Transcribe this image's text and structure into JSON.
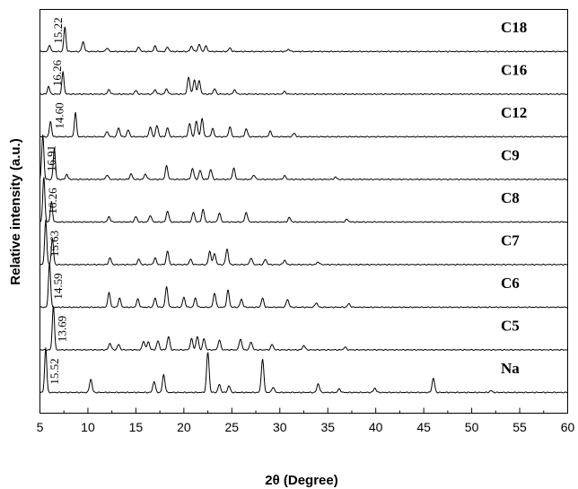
{
  "chart_data": {
    "type": "line",
    "title": "",
    "xlabel": "2θ (Degree)",
    "ylabel": "Relative intensity (a.u.)",
    "xlim": [
      5,
      60
    ],
    "xticks": [
      5,
      10,
      15,
      20,
      25,
      30,
      35,
      40,
      45,
      50,
      55,
      60
    ],
    "grid": false,
    "series": [
      {
        "name": "C18",
        "first_peak_label": "15.22",
        "peaks": [
          [
            6.0,
            0.15
          ],
          [
            7.6,
            0.55
          ],
          [
            9.5,
            0.22
          ],
          [
            12.0,
            0.08
          ],
          [
            15.3,
            0.1
          ],
          [
            17.0,
            0.12
          ],
          [
            18.3,
            0.1
          ],
          [
            20.8,
            0.12
          ],
          [
            21.6,
            0.16
          ],
          [
            22.3,
            0.12
          ],
          [
            24.8,
            0.08
          ],
          [
            30.9,
            0.05
          ]
        ]
      },
      {
        "name": "C16",
        "first_peak_label": "16.26",
        "peaks": [
          [
            5.9,
            0.18
          ],
          [
            7.4,
            0.5
          ],
          [
            12.2,
            0.1
          ],
          [
            15.0,
            0.08
          ],
          [
            17.0,
            0.1
          ],
          [
            18.2,
            0.12
          ],
          [
            20.5,
            0.38
          ],
          [
            21.1,
            0.32
          ],
          [
            21.6,
            0.3
          ],
          [
            23.2,
            0.12
          ],
          [
            25.3,
            0.1
          ],
          [
            30.5,
            0.06
          ]
        ]
      },
      {
        "name": "C12",
        "first_peak_label": "14.60",
        "peaks": [
          [
            6.1,
            0.35
          ],
          [
            8.7,
            0.55
          ],
          [
            12.0,
            0.12
          ],
          [
            13.2,
            0.2
          ],
          [
            14.2,
            0.15
          ],
          [
            16.5,
            0.22
          ],
          [
            17.2,
            0.25
          ],
          [
            18.3,
            0.2
          ],
          [
            20.6,
            0.3
          ],
          [
            21.3,
            0.35
          ],
          [
            21.9,
            0.4
          ],
          [
            23.0,
            0.18
          ],
          [
            24.8,
            0.22
          ],
          [
            26.5,
            0.18
          ],
          [
            29.0,
            0.12
          ],
          [
            31.5,
            0.08
          ]
        ]
      },
      {
        "name": "C9",
        "first_peak_label": "16.91",
        "peaks": [
          [
            5.3,
            1.0
          ],
          [
            6.5,
            0.7
          ],
          [
            7.8,
            0.12
          ],
          [
            12.0,
            0.1
          ],
          [
            14.5,
            0.12
          ],
          [
            16.0,
            0.12
          ],
          [
            18.2,
            0.3
          ],
          [
            20.9,
            0.25
          ],
          [
            21.7,
            0.2
          ],
          [
            22.8,
            0.22
          ],
          [
            25.2,
            0.25
          ],
          [
            27.3,
            0.1
          ],
          [
            30.5,
            0.08
          ],
          [
            35.8,
            0.05
          ]
        ]
      },
      {
        "name": "C8",
        "first_peak_label": "16.26",
        "peaks": [
          [
            5.4,
            1.0
          ],
          [
            6.2,
            0.45
          ],
          [
            12.2,
            0.12
          ],
          [
            15.0,
            0.12
          ],
          [
            16.5,
            0.15
          ],
          [
            18.3,
            0.25
          ],
          [
            21.0,
            0.22
          ],
          [
            22.0,
            0.28
          ],
          [
            23.7,
            0.2
          ],
          [
            26.5,
            0.22
          ],
          [
            31.0,
            0.1
          ],
          [
            37.0,
            0.06
          ]
        ]
      },
      {
        "name": "C7",
        "first_peak_label": "15.63",
        "peaks": [
          [
            5.6,
            1.0
          ],
          [
            6.3,
            0.6
          ],
          [
            12.3,
            0.15
          ],
          [
            15.3,
            0.12
          ],
          [
            17.0,
            0.15
          ],
          [
            18.3,
            0.3
          ],
          [
            20.7,
            0.12
          ],
          [
            22.7,
            0.3
          ],
          [
            23.2,
            0.25
          ],
          [
            24.5,
            0.35
          ],
          [
            27.0,
            0.15
          ],
          [
            28.5,
            0.12
          ],
          [
            30.5,
            0.1
          ],
          [
            34.0,
            0.06
          ]
        ]
      },
      {
        "name": "C6",
        "first_peak_label": "14.59",
        "peaks": [
          [
            6.0,
            1.0
          ],
          [
            12.2,
            0.32
          ],
          [
            13.3,
            0.2
          ],
          [
            15.2,
            0.18
          ],
          [
            17.0,
            0.2
          ],
          [
            18.2,
            0.45
          ],
          [
            20.0,
            0.22
          ],
          [
            21.2,
            0.2
          ],
          [
            23.2,
            0.32
          ],
          [
            24.6,
            0.38
          ],
          [
            26.0,
            0.18
          ],
          [
            28.2,
            0.2
          ],
          [
            30.8,
            0.18
          ],
          [
            33.8,
            0.1
          ],
          [
            37.2,
            0.08
          ]
        ]
      },
      {
        "name": "C5",
        "first_peak_label": "13.69",
        "peaks": [
          [
            6.4,
            1.0
          ],
          [
            12.3,
            0.15
          ],
          [
            13.2,
            0.12
          ],
          [
            15.8,
            0.2
          ],
          [
            16.3,
            0.18
          ],
          [
            17.3,
            0.2
          ],
          [
            18.4,
            0.3
          ],
          [
            20.8,
            0.25
          ],
          [
            21.4,
            0.3
          ],
          [
            22.1,
            0.25
          ],
          [
            23.7,
            0.22
          ],
          [
            25.9,
            0.25
          ],
          [
            27.0,
            0.18
          ],
          [
            29.2,
            0.12
          ],
          [
            32.5,
            0.1
          ],
          [
            36.8,
            0.06
          ]
        ]
      },
      {
        "name": "Na",
        "first_peak_label": "15.52",
        "peaks": [
          [
            5.6,
            1.0
          ],
          [
            10.3,
            0.3
          ],
          [
            16.9,
            0.25
          ],
          [
            17.9,
            0.4
          ],
          [
            22.5,
            0.9
          ],
          [
            23.7,
            0.18
          ],
          [
            24.7,
            0.15
          ],
          [
            28.2,
            0.75
          ],
          [
            29.3,
            0.12
          ],
          [
            34.0,
            0.2
          ],
          [
            36.2,
            0.08
          ],
          [
            39.9,
            0.1
          ],
          [
            46.0,
            0.32
          ],
          [
            52.0,
            0.04
          ]
        ]
      }
    ]
  }
}
